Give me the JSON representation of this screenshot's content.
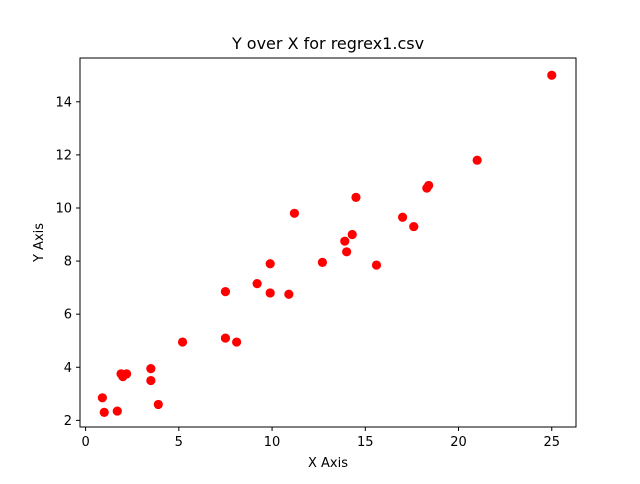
{
  "chart_data": {
    "type": "scatter",
    "title": "Y over X for regrex1.csv",
    "xlabel": "X Axis",
    "ylabel": "Y Axis",
    "xlim": [
      -0.3,
      26.3
    ],
    "ylim": [
      1.75,
      15.65
    ],
    "xticks": [
      0,
      5,
      10,
      15,
      20,
      25
    ],
    "yticks": [
      2,
      4,
      6,
      8,
      10,
      12,
      14
    ],
    "grid": false,
    "marker_color": "#ff0000",
    "points": [
      {
        "x": 0.9,
        "y": 2.85
      },
      {
        "x": 1.0,
        "y": 2.3
      },
      {
        "x": 1.7,
        "y": 2.35
      },
      {
        "x": 1.9,
        "y": 3.75
      },
      {
        "x": 2.0,
        "y": 3.65
      },
      {
        "x": 2.2,
        "y": 3.75
      },
      {
        "x": 3.5,
        "y": 3.95
      },
      {
        "x": 3.5,
        "y": 3.5
      },
      {
        "x": 3.9,
        "y": 2.6
      },
      {
        "x": 5.2,
        "y": 4.95
      },
      {
        "x": 7.5,
        "y": 6.85
      },
      {
        "x": 7.5,
        "y": 5.1
      },
      {
        "x": 8.1,
        "y": 4.95
      },
      {
        "x": 9.2,
        "y": 7.15
      },
      {
        "x": 9.9,
        "y": 7.9
      },
      {
        "x": 9.9,
        "y": 6.8
      },
      {
        "x": 10.9,
        "y": 6.75
      },
      {
        "x": 11.2,
        "y": 9.8
      },
      {
        "x": 12.7,
        "y": 7.95
      },
      {
        "x": 13.9,
        "y": 8.75
      },
      {
        "x": 14.0,
        "y": 8.35
      },
      {
        "x": 14.3,
        "y": 9.0
      },
      {
        "x": 14.5,
        "y": 10.4
      },
      {
        "x": 15.6,
        "y": 7.85
      },
      {
        "x": 17.0,
        "y": 9.65
      },
      {
        "x": 17.6,
        "y": 9.3
      },
      {
        "x": 18.3,
        "y": 10.75
      },
      {
        "x": 18.4,
        "y": 10.85
      },
      {
        "x": 21.0,
        "y": 11.8
      },
      {
        "x": 25.0,
        "y": 15.0
      }
    ]
  }
}
